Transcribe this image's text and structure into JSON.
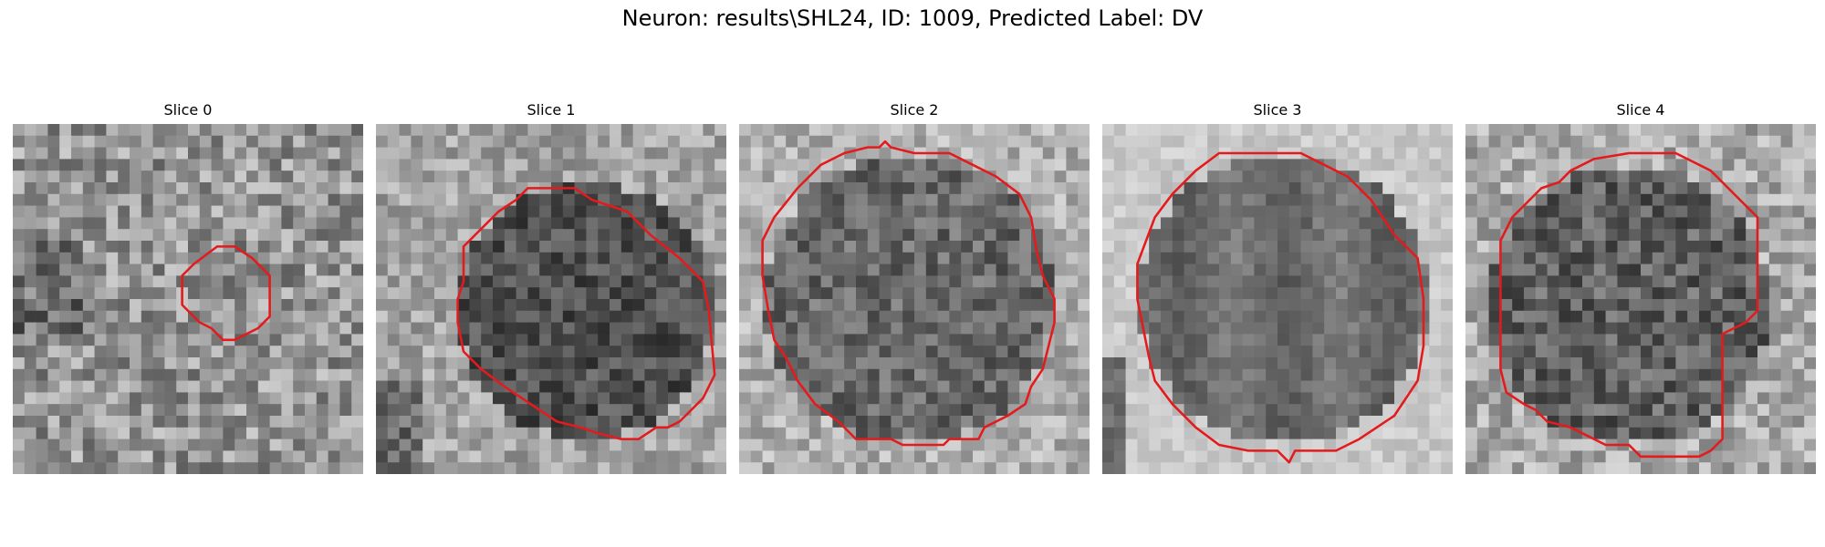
{
  "figure": {
    "title": "Neuron: results\\SHL24, ID: 1009, Predicted Label: DV"
  },
  "outline_color": "#e41a1c",
  "colormap": "grayscale",
  "panels": [
    {
      "title": "Slice 0"
    },
    {
      "title": "Slice 1"
    },
    {
      "title": "Slice 2"
    },
    {
      "title": "Slice 3"
    },
    {
      "title": "Slice 4"
    }
  ]
}
